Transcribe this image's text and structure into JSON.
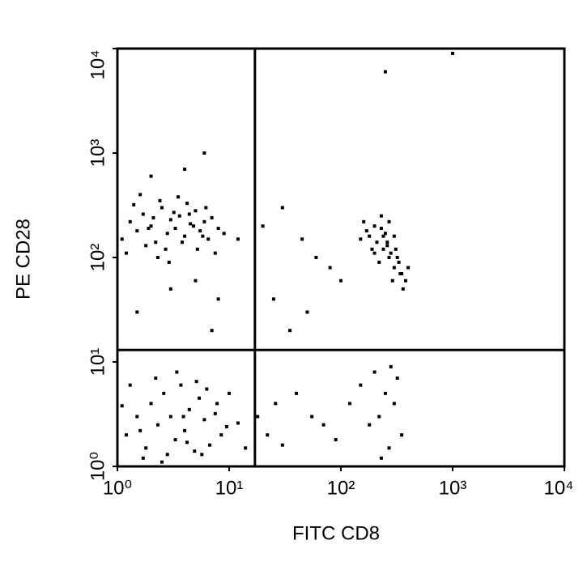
{
  "chart_data": {
    "type": "scatter",
    "xlabel": "FITC CD8",
    "ylabel": "PE CD28",
    "xscale": "log",
    "yscale": "log",
    "xlim": [
      1,
      10000
    ],
    "ylim": [
      1,
      10000
    ],
    "xticks": [
      {
        "value": 1,
        "label": "10⁰"
      },
      {
        "value": 10,
        "label": "10¹"
      },
      {
        "value": 100,
        "label": "10²"
      },
      {
        "value": 1000,
        "label": "10³"
      },
      {
        "value": 10000,
        "label": "10⁴"
      }
    ],
    "yticks": [
      {
        "value": 1,
        "label": "10⁰"
      },
      {
        "value": 10,
        "label": "10¹"
      },
      {
        "value": 100,
        "label": "10²"
      },
      {
        "value": 1000,
        "label": "10³"
      },
      {
        "value": 10000,
        "label": "10⁴"
      }
    ],
    "gates": {
      "x": 17,
      "y": 13
    },
    "color": "#000000",
    "x": [
      1.1,
      1.3,
      1.5,
      1.7,
      2,
      2.2,
      2.5,
      2.8,
      3,
      3.3,
      3.6,
      4,
      4.5,
      5,
      5.5,
      6,
      6.5,
      7,
      8,
      9,
      1.2,
      1.4,
      1.8,
      2.1,
      2.4,
      2.7,
      3.2,
      3.8,
      4.2,
      4.8,
      5.2,
      5.8,
      1.6,
      2.3,
      2.9,
      3.5,
      4.4,
      6.2,
      7.5,
      1.9,
      150,
      170,
      190,
      200,
      220,
      240,
      260,
      280,
      300,
      320,
      350,
      380,
      160,
      210,
      230,
      250,
      270,
      290,
      310,
      330,
      360,
      400,
      180,
      200,
      230,
      260,
      300,
      340,
      270,
      240,
      1.2,
      1.5,
      1.8,
      2,
      2.3,
      2.6,
      3,
      3.3,
      3.7,
      4,
      4.4,
      4.9,
      5.4,
      6,
      6.7,
      7.5,
      8.5,
      10,
      12,
      14,
      1.3,
      1.7,
      2.2,
      2.8,
      3.4,
      4.2,
      5.1,
      6.3,
      7.8,
      9.5,
      1.1,
      1.6,
      2.5,
      3.9,
      5.7,
      18,
      22,
      26,
      30,
      40,
      55,
      70,
      90,
      120,
      150,
      180,
      200,
      220,
      250,
      270,
      300,
      320,
      350,
      230,
      280,
      2,
      4,
      6,
      3,
      8,
      1.5,
      5,
      12,
      20,
      30,
      45,
      60,
      80,
      100,
      35,
      50,
      25,
      7,
      250,
      1000
    ],
    "y": [
      150,
      220,
      180,
      260,
      200,
      140,
      300,
      170,
      230,
      190,
      250,
      160,
      210,
      280,
      180,
      220,
      150,
      240,
      190,
      170,
      110,
      320,
      130,
      240,
      350,
      120,
      270,
      140,
      330,
      200,
      120,
      160,
      400,
      100,
      90,
      380,
      260,
      300,
      110,
      190,
      150,
      180,
      120,
      200,
      90,
      160,
      130,
      110,
      80,
      100,
      70,
      60,
      220,
      140,
      250,
      170,
      100,
      60,
      120,
      90,
      50,
      80,
      160,
      110,
      190,
      140,
      160,
      70,
      220,
      120,
      2,
      3,
      1.5,
      4,
      2.5,
      5,
      3,
      1.8,
      6,
      2.2,
      3.5,
      1.4,
      4.5,
      2.8,
      1.6,
      3.2,
      2,
      5,
      2.6,
      1.5,
      6,
      1.2,
      7,
      1.3,
      8,
      1.7,
      6.5,
      5.5,
      4,
      2.4,
      3.8,
      2.2,
      1.1,
      3,
      1.3,
      3,
      2,
      4,
      1.6,
      5,
      3,
      2.5,
      1.8,
      4,
      6,
      2.5,
      8,
      3,
      5,
      1.5,
      4,
      7,
      2,
      1.2,
      9,
      600,
      700,
      1000,
      50,
      40,
      30,
      60,
      150,
      200,
      300,
      150,
      100,
      80,
      60,
      20,
      30,
      40,
      20,
      6000,
      9000
    ]
  }
}
